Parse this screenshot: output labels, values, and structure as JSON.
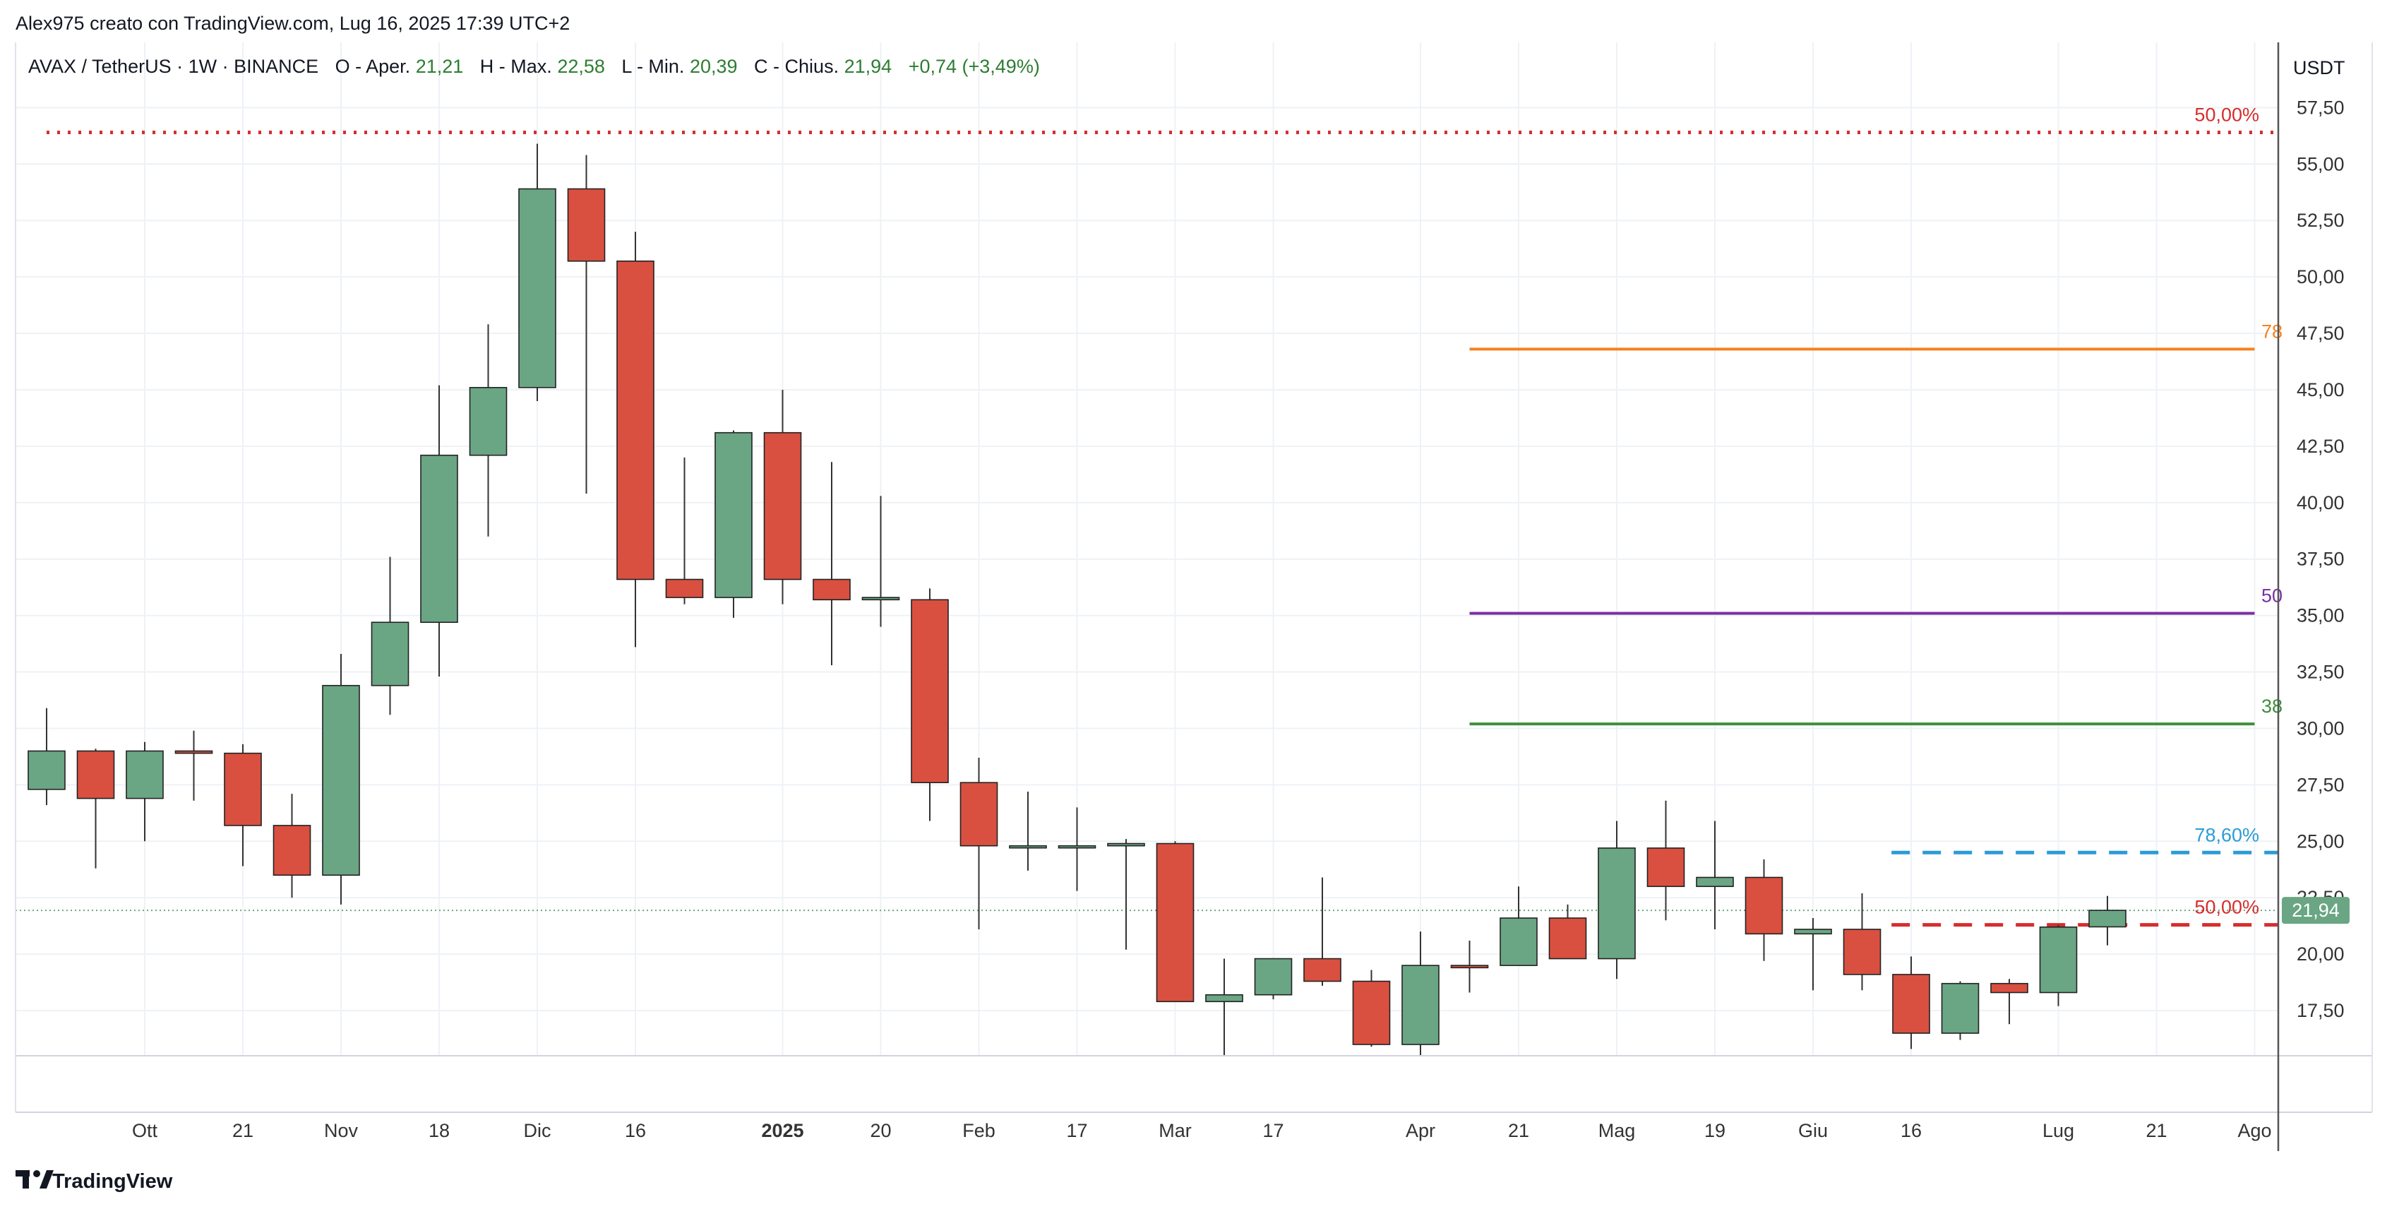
{
  "header": {
    "author_line": "Alex975 creato con TradingView.com, Lug 16, 2025 17:39 UTC+2"
  },
  "legend": {
    "symbol": "AVAX / TetherUS · 1W · BINANCE",
    "o_label": "O - Aper.",
    "o_value": "21,21",
    "h_label": "H - Max.",
    "h_value": "22,58",
    "l_label": "L - Min.",
    "l_value": "20,39",
    "c_label": "C - Chius.",
    "c_value": "21,94",
    "change": "+0,74 (+3,49%)"
  },
  "price_axis": {
    "currency": "USDT",
    "current_price_label": "21,94"
  },
  "footer": {
    "brand": "TradingView"
  },
  "colors": {
    "up": "#6aa684",
    "down": "#d95040",
    "wick": "#333333",
    "grid": "#eef2f6",
    "axis_text": "#333333",
    "fib_red": "#d72d2d",
    "fib_orange": "#f58220",
    "fib_purple": "#7b2fa0",
    "fib_green": "#3f8f3b",
    "fib_blue": "#2b9bd6",
    "price_tag_bg": "#6aa684"
  },
  "chart_data": {
    "type": "candlestick",
    "interval": "1W",
    "y_unit": "USDT",
    "ylim": [
      15.5,
      58.2
    ],
    "y_ticks": [
      {
        "value": 17.5,
        "label": "17,50"
      },
      {
        "value": 20,
        "label": "20,00"
      },
      {
        "value": 22.5,
        "label": "22,50"
      },
      {
        "value": 25,
        "label": "25,00"
      },
      {
        "value": 27.5,
        "label": "27,50"
      },
      {
        "value": 30,
        "label": "30,00"
      },
      {
        "value": 32.5,
        "label": "32,50"
      },
      {
        "value": 35,
        "label": "35,00"
      },
      {
        "value": 37.5,
        "label": "37,50"
      },
      {
        "value": 40,
        "label": "40,00"
      },
      {
        "value": 42.5,
        "label": "42,50"
      },
      {
        "value": 45,
        "label": "45,00"
      },
      {
        "value": 47.5,
        "label": "47,50"
      },
      {
        "value": 50,
        "label": "50,00"
      },
      {
        "value": 52.5,
        "label": "52,50"
      },
      {
        "value": 55,
        "label": "55,00"
      },
      {
        "value": 57.5,
        "label": "57,50"
      }
    ],
    "x_ticks": [
      {
        "index": 2,
        "label": "Ott",
        "bold": false
      },
      {
        "index": 4,
        "label": "21",
        "bold": false
      },
      {
        "index": 6,
        "label": "Nov",
        "bold": false
      },
      {
        "index": 8,
        "label": "18",
        "bold": false
      },
      {
        "index": 10,
        "label": "Dic",
        "bold": false
      },
      {
        "index": 12,
        "label": "16",
        "bold": false
      },
      {
        "index": 15,
        "label": "2025",
        "bold": true
      },
      {
        "index": 17,
        "label": "20",
        "bold": false
      },
      {
        "index": 19,
        "label": "Feb",
        "bold": false
      },
      {
        "index": 21,
        "label": "17",
        "bold": false
      },
      {
        "index": 23,
        "label": "Mar",
        "bold": false
      },
      {
        "index": 25,
        "label": "17",
        "bold": false
      },
      {
        "index": 28,
        "label": "Apr",
        "bold": false
      },
      {
        "index": 30,
        "label": "21",
        "bold": false
      },
      {
        "index": 32,
        "label": "Mag",
        "bold": false
      },
      {
        "index": 34,
        "label": "19",
        "bold": false
      },
      {
        "index": 36,
        "label": "Giu",
        "bold": false
      },
      {
        "index": 38,
        "label": "16",
        "bold": false
      },
      {
        "index": 41,
        "label": "Lug",
        "bold": false
      },
      {
        "index": 43,
        "label": "21",
        "bold": false
      },
      {
        "index": 45,
        "label": "Ago",
        "bold": false
      }
    ],
    "candles": [
      {
        "o": 27.3,
        "h": 30.9,
        "l": 26.6,
        "c": 29.0
      },
      {
        "o": 29.0,
        "h": 29.1,
        "l": 23.8,
        "c": 26.9
      },
      {
        "o": 26.9,
        "h": 29.4,
        "l": 25.0,
        "c": 29.0
      },
      {
        "o": 29.0,
        "h": 29.9,
        "l": 26.8,
        "c": 28.9
      },
      {
        "o": 28.9,
        "h": 29.3,
        "l": 23.9,
        "c": 25.7
      },
      {
        "o": 25.7,
        "h": 27.1,
        "l": 22.5,
        "c": 23.5
      },
      {
        "o": 23.5,
        "h": 33.3,
        "l": 22.2,
        "c": 31.9
      },
      {
        "o": 31.9,
        "h": 37.6,
        "l": 30.6,
        "c": 34.7
      },
      {
        "o": 34.7,
        "h": 45.2,
        "l": 32.3,
        "c": 42.1
      },
      {
        "o": 42.1,
        "h": 47.9,
        "l": 38.5,
        "c": 45.1
      },
      {
        "o": 45.1,
        "h": 55.9,
        "l": 44.5,
        "c": 53.9
      },
      {
        "o": 53.9,
        "h": 55.4,
        "l": 40.4,
        "c": 50.7
      },
      {
        "o": 50.7,
        "h": 52.0,
        "l": 33.6,
        "c": 36.6
      },
      {
        "o": 36.6,
        "h": 42.0,
        "l": 35.5,
        "c": 35.8
      },
      {
        "o": 35.8,
        "h": 43.2,
        "l": 34.9,
        "c": 43.1
      },
      {
        "o": 43.1,
        "h": 45.0,
        "l": 35.5,
        "c": 36.6
      },
      {
        "o": 36.6,
        "h": 41.8,
        "l": 32.8,
        "c": 35.7
      },
      {
        "o": 35.7,
        "h": 40.3,
        "l": 34.5,
        "c": 35.8
      },
      {
        "o": 35.7,
        "h": 36.2,
        "l": 25.9,
        "c": 27.6
      },
      {
        "o": 27.6,
        "h": 28.7,
        "l": 21.1,
        "c": 24.8
      },
      {
        "o": 24.8,
        "h": 27.2,
        "l": 23.7,
        "c": 24.8
      },
      {
        "o": 24.8,
        "h": 26.5,
        "l": 22.8,
        "c": 24.8
      },
      {
        "o": 24.8,
        "h": 25.1,
        "l": 20.2,
        "c": 24.9
      },
      {
        "o": 24.9,
        "h": 25.0,
        "l": 17.9,
        "c": 17.9
      },
      {
        "o": 17.9,
        "h": 19.8,
        "l": 15.5,
        "c": 18.2
      },
      {
        "o": 18.2,
        "h": 19.8,
        "l": 18.0,
        "c": 19.8
      },
      {
        "o": 19.8,
        "h": 23.4,
        "l": 18.6,
        "c": 18.8
      },
      {
        "o": 18.8,
        "h": 19.3,
        "l": 15.9,
        "c": 16.0
      },
      {
        "o": 16.0,
        "h": 21.0,
        "l": 15.5,
        "c": 19.5
      },
      {
        "o": 19.5,
        "h": 20.6,
        "l": 18.3,
        "c": 19.4
      },
      {
        "o": 19.5,
        "h": 23.0,
        "l": 19.5,
        "c": 21.6
      },
      {
        "o": 21.6,
        "h": 22.2,
        "l": 19.8,
        "c": 19.8
      },
      {
        "o": 19.8,
        "h": 25.9,
        "l": 18.9,
        "c": 24.7
      },
      {
        "o": 24.7,
        "h": 26.8,
        "l": 21.5,
        "c": 23.0
      },
      {
        "o": 23.0,
        "h": 25.9,
        "l": 21.1,
        "c": 23.4
      },
      {
        "o": 23.4,
        "h": 24.2,
        "l": 19.7,
        "c": 20.9
      },
      {
        "o": 20.9,
        "h": 21.6,
        "l": 18.4,
        "c": 21.1
      },
      {
        "o": 21.1,
        "h": 22.7,
        "l": 18.4,
        "c": 19.1
      },
      {
        "o": 19.1,
        "h": 19.9,
        "l": 15.8,
        "c": 16.5
      },
      {
        "o": 16.5,
        "h": 18.8,
        "l": 16.2,
        "c": 18.7
      },
      {
        "o": 18.7,
        "h": 18.9,
        "l": 16.9,
        "c": 18.3
      },
      {
        "o": 18.3,
        "h": 21.3,
        "l": 17.7,
        "c": 21.2
      },
      {
        "o": 21.21,
        "h": 22.58,
        "l": 20.39,
        "c": 21.94
      }
    ],
    "current_price": 21.94,
    "levels": [
      {
        "name": "fib-50-top",
        "price": 56.4,
        "label": "50,00%",
        "color": "#d72d2d",
        "style": "dotted",
        "from_index": 0,
        "to_index": 46
      },
      {
        "name": "fib-78-orange",
        "price": 46.8,
        "label": "78",
        "color": "#f58220",
        "style": "solid",
        "from_index": 29,
        "to_index": 45
      },
      {
        "name": "fib-50-purple",
        "price": 35.1,
        "label": "50",
        "color": "#7b2fa0",
        "style": "solid",
        "from_index": 29,
        "to_index": 45
      },
      {
        "name": "fib-38-green",
        "price": 30.2,
        "label": "38",
        "color": "#3f8f3b",
        "style": "solid",
        "from_index": 29,
        "to_index": 45
      },
      {
        "name": "fib-78-blue",
        "price": 24.5,
        "label": "78,60%",
        "color": "#2b9bd6",
        "style": "dashed",
        "from_index": 37.6,
        "to_index": 46
      },
      {
        "name": "fib-50-red-low",
        "price": 21.3,
        "label": "50,00%",
        "color": "#d72d2d",
        "style": "dashed",
        "from_index": 37.6,
        "to_index": 46
      }
    ]
  }
}
